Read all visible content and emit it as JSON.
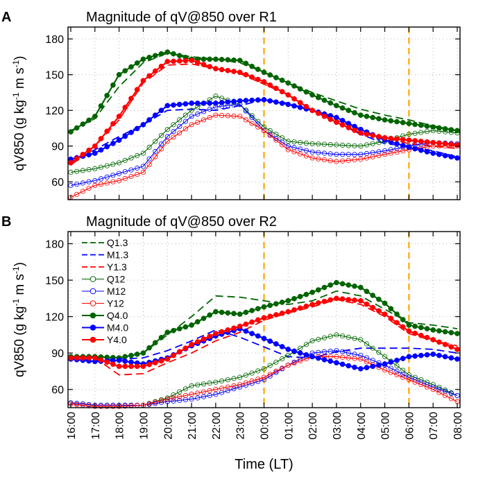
{
  "figure": {
    "x_ticks": [
      "16:00",
      "17:00",
      "18:00",
      "19:00",
      "20:00",
      "21:00",
      "22:00",
      "23:00",
      "00:00",
      "01:00",
      "02:00",
      "03:00",
      "04:00",
      "05:00",
      "06:00",
      "07:00",
      "08:00"
    ],
    "x_label": "Time (LT)",
    "y_label_main": "qV850 (g kg",
    "y_label_exp1": "-1",
    "y_label_mid": " m s",
    "y_label_exp2": "-1",
    "y_label_end": ")",
    "vlines_at": [
      8,
      14
    ],
    "vline_color": "#ffa500"
  },
  "chart_data": [
    {
      "type": "line",
      "panel": "A",
      "title": "Magnitude of qV@850 over R1",
      "ylim": [
        45,
        190
      ],
      "y_ticks": [
        60,
        90,
        120,
        150,
        180
      ],
      "x": [
        0,
        1,
        2,
        3,
        4,
        5,
        6,
        7,
        8,
        9,
        10,
        11,
        12,
        13,
        14,
        15,
        16
      ],
      "series": [
        {
          "name": "Q1.3",
          "style": "dashed",
          "color": "#006400",
          "values": [
            103,
            113,
            140,
            160,
            168,
            165,
            163,
            160,
            152,
            143,
            135,
            128,
            121,
            116,
            112,
            107,
            103
          ]
        },
        {
          "name": "M1.3",
          "style": "dashed",
          "color": "#0000ff",
          "values": [
            76,
            87,
            98,
            108,
            120,
            121,
            120,
            124,
            129,
            126,
            120,
            110,
            100,
            92,
            90,
            86,
            81
          ]
        },
        {
          "name": "Y1.3",
          "style": "dashed",
          "color": "#ff0000",
          "values": [
            74,
            90,
            112,
            143,
            158,
            159,
            155,
            151,
            142,
            133,
            120,
            112,
            103,
            97,
            92,
            90,
            88
          ]
        },
        {
          "name": "Q12",
          "style": "open",
          "color": "#006400",
          "values": [
            68,
            71,
            76,
            84,
            104,
            120,
            132,
            125,
            106,
            94,
            92,
            91,
            90,
            94,
            100,
            103,
            101
          ]
        },
        {
          "name": "M12",
          "style": "open",
          "color": "#0000ff",
          "values": [
            57,
            61,
            67,
            73,
            98,
            115,
            123,
            125,
            103,
            90,
            85,
            83,
            83,
            86,
            90,
            93,
            92
          ]
        },
        {
          "name": "Y12",
          "style": "open",
          "color": "#ff0000",
          "values": [
            47,
            57,
            61,
            68,
            94,
            108,
            116,
            115,
            103,
            87,
            80,
            77,
            79,
            83,
            87,
            90,
            90
          ]
        },
        {
          "name": "Q4.0",
          "style": "filled",
          "color": "#006400",
          "values": [
            102,
            115,
            150,
            163,
            169,
            163,
            163,
            162,
            152,
            143,
            133,
            124,
            116,
            112,
            109,
            106,
            103
          ]
        },
        {
          "name": "M4.0",
          "style": "filled",
          "color": "#0000ff",
          "values": [
            79,
            84,
            95,
            108,
            124,
            126,
            126,
            128,
            129,
            125,
            120,
            114,
            104,
            95,
            89,
            84,
            80
          ]
        },
        {
          "name": "Y4.0",
          "style": "filled",
          "color": "#ff0000",
          "values": [
            76,
            90,
            115,
            145,
            161,
            162,
            155,
            152,
            144,
            133,
            120,
            110,
            101,
            97,
            95,
            93,
            91
          ]
        }
      ]
    },
    {
      "type": "line",
      "panel": "B",
      "title": "Magnitude of qV@850 over R2",
      "ylim": [
        45,
        190
      ],
      "y_ticks": [
        60,
        90,
        120,
        150,
        180
      ],
      "x": [
        0,
        1,
        2,
        3,
        4,
        5,
        6,
        7,
        8,
        9,
        10,
        11,
        12,
        13,
        14,
        15,
        16
      ],
      "series": [
        {
          "name": "Q1.3",
          "style": "dashed",
          "color": "#006400",
          "values": [
            87,
            86,
            86,
            90,
            105,
            120,
            137,
            136,
            133,
            130,
            133,
            141,
            137,
            126,
            115,
            113,
            110
          ]
        },
        {
          "name": "M1.3",
          "style": "dashed",
          "color": "#0000ff",
          "values": [
            85,
            84,
            85,
            86,
            92,
            100,
            109,
            103,
            95,
            87,
            86,
            91,
            94,
            94,
            94,
            93,
            90
          ]
        },
        {
          "name": "Y1.3",
          "style": "dashed",
          "color": "#ff0000",
          "values": [
            85,
            86,
            72,
            73,
            82,
            90,
            100,
            107,
            117,
            123,
            128,
            134,
            130,
            120,
            106,
            100,
            96
          ]
        },
        {
          "name": "Q12",
          "style": "open",
          "color": "#006400",
          "values": [
            49,
            47,
            47,
            47,
            53,
            63,
            66,
            70,
            77,
            88,
            100,
            105,
            101,
            87,
            72,
            64,
            55
          ]
        },
        {
          "name": "M12",
          "style": "open",
          "color": "#0000ff",
          "values": [
            49,
            47,
            47,
            47,
            50,
            52,
            56,
            62,
            68,
            80,
            90,
            92,
            88,
            80,
            70,
            62,
            55
          ]
        },
        {
          "name": "Y12",
          "style": "open",
          "color": "#ff0000",
          "values": [
            48,
            46,
            46,
            47,
            52,
            56,
            60,
            64,
            70,
            80,
            87,
            87,
            85,
            76,
            68,
            60,
            50
          ]
        },
        {
          "name": "Q4.0",
          "style": "filled",
          "color": "#006400",
          "values": [
            87,
            87,
            86,
            90,
            107,
            113,
            124,
            122,
            128,
            133,
            140,
            148,
            144,
            131,
            113,
            109,
            106
          ]
        },
        {
          "name": "M4.0",
          "style": "filled",
          "color": "#0000ff",
          "values": [
            85,
            83,
            84,
            81,
            86,
            96,
            104,
            110,
            102,
            93,
            87,
            82,
            77,
            81,
            87,
            89,
            85
          ]
        },
        {
          "name": "Y4.0",
          "style": "filled",
          "color": "#ff0000",
          "values": [
            86,
            86,
            79,
            79,
            85,
            97,
            106,
            112,
            119,
            124,
            130,
            135,
            133,
            122,
            108,
            101,
            93
          ]
        }
      ],
      "legend": {
        "placement": "top-left",
        "entries": [
          "Q1.3",
          "M1.3",
          "Y1.3",
          "Q12",
          "M12",
          "Y12",
          "Q4.0",
          "M4.0",
          "Y4.0"
        ]
      }
    }
  ]
}
